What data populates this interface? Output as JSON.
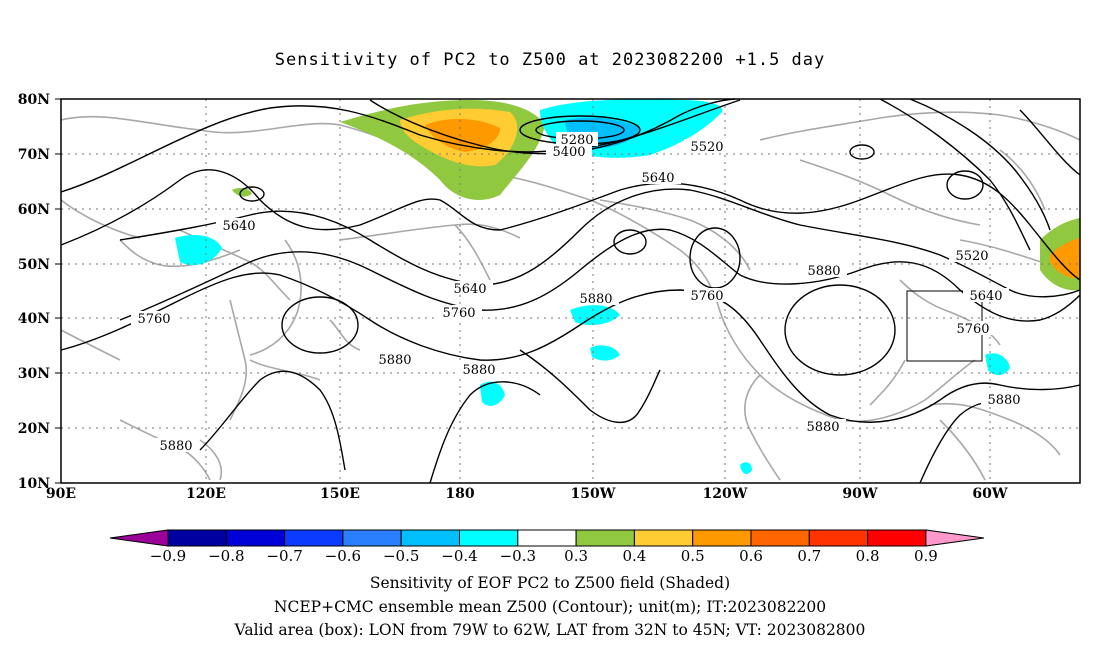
{
  "title": "Sensitivity of PC2 to Z500 at 2023082200 +1.5 day",
  "map": {
    "lat_labels": [
      "80N",
      "70N",
      "60N",
      "50N",
      "40N",
      "30N",
      "20N",
      "10N"
    ],
    "lon_labels": [
      "90E",
      "120E",
      "150E",
      "180",
      "150W",
      "120W",
      "90W",
      "60W"
    ],
    "contour_labels": [
      "5280",
      "5400",
      "5520",
      "5640",
      "5640",
      "5640",
      "5640",
      "5760",
      "5760",
      "5760",
      "5760",
      "5880",
      "5880",
      "5880",
      "5880",
      "5880",
      "5880",
      "5520",
      "5640",
      "5760",
      "5880"
    ],
    "valid_box": {
      "lon_west": "79W",
      "lon_east": "62W",
      "lat_south": "32N",
      "lat_north": "45N"
    }
  },
  "colorbar": {
    "labels": [
      "−0.9",
      "−0.8",
      "−0.7",
      "−0.6",
      "−0.5",
      "−0.4",
      "−0.3",
      "0.3",
      "0.4",
      "0.5",
      "0.6",
      "0.7",
      "0.8",
      "0.9"
    ],
    "colors": [
      "#9b0099",
      "#0000a0",
      "#0000d8",
      "#0a3cff",
      "#2a7fff",
      "#00bfff",
      "#00ffff",
      "#ffffff",
      "#90c840",
      "#ffcc33",
      "#ff9900",
      "#ff6600",
      "#ff3300",
      "#ff0000",
      "#ff99cc"
    ]
  },
  "footer": {
    "line1": "Sensitivity of EOF PC2 to Z500 field (Shaded)",
    "line2": "NCEP+CMC ensemble mean Z500 (Contour); unit(m); IT:2023082200",
    "line3": "Valid area (box): LON from 79W to 62W, LAT from 32N to 45N; VT: 2023082800"
  }
}
